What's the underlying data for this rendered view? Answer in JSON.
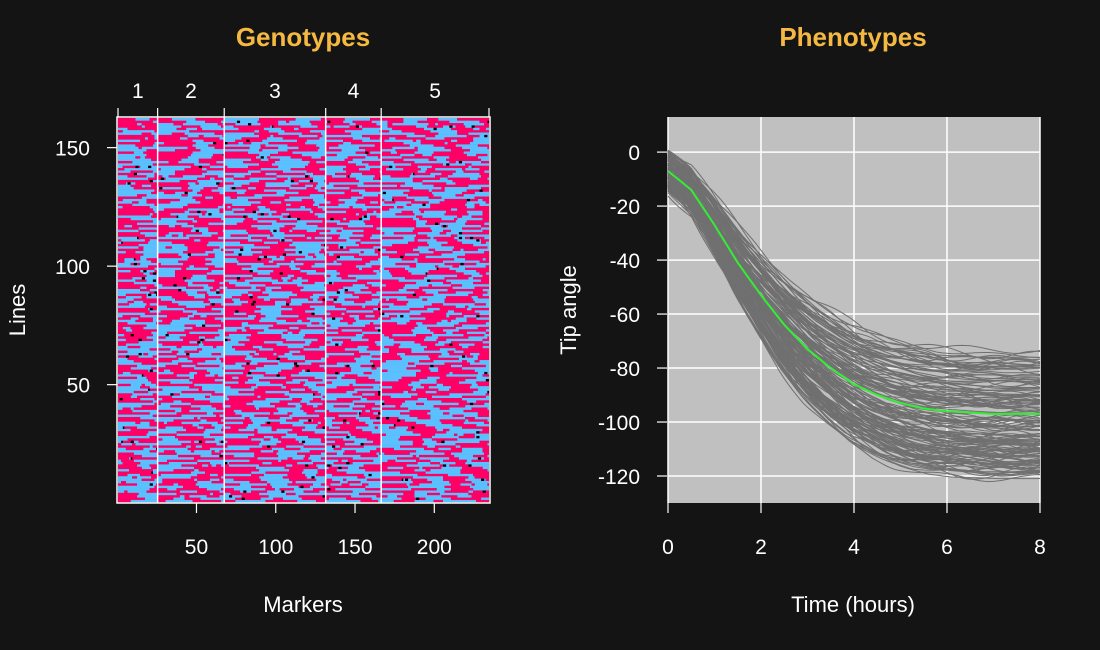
{
  "chart_data": [
    {
      "type": "heatmap",
      "title": "Genotypes",
      "xlabel": "Markers",
      "ylabel": "Lines",
      "xlim": [
        0.5,
        234.5
      ],
      "ylim": [
        0.5,
        162.5
      ],
      "x_ticks": [
        "50",
        "100",
        "150",
        "200"
      ],
      "y_ticks": [
        "50",
        "100",
        "150"
      ],
      "chromosomes": [
        "1",
        "2",
        "3",
        "4",
        "5"
      ],
      "chromosome_marker_counts": [
        25,
        42,
        64,
        35,
        68
      ],
      "n_lines": 162,
      "n_markers": 234,
      "colors": {
        "genotype_a": "#ff0066",
        "genotype_b": "#5bc0ff",
        "missing": "#000000",
        "separator": "#ffffff"
      }
    },
    {
      "type": "line",
      "title": "Phenotypes",
      "xlabel": "Time (hours)",
      "ylabel": "Tip angle",
      "xlim": [
        0,
        8
      ],
      "ylim": [
        -130,
        13
      ],
      "x_ticks": [
        "0",
        "2",
        "4",
        "6",
        "8"
      ],
      "y_ticks": [
        "0",
        "-20",
        "-40",
        "-60",
        "-80",
        "-100",
        "-120"
      ],
      "grid": true,
      "mean_series": {
        "x": [
          0,
          0.5,
          1,
          1.5,
          2,
          2.5,
          3,
          3.5,
          4,
          4.5,
          5,
          5.5,
          6,
          6.5,
          7,
          7.5,
          8
        ],
        "y": [
          -7,
          -14,
          -27,
          -41,
          -53,
          -64,
          -73,
          -80,
          -86,
          -90,
          -93,
          -95,
          -96,
          -96.5,
          -97,
          -97,
          -97
        ]
      },
      "n_curves": 162,
      "colors": {
        "panel_bg": "#c0c0c0",
        "curves": "#707070",
        "mean": "#33ee33",
        "grid": "#ffffff"
      }
    }
  ]
}
